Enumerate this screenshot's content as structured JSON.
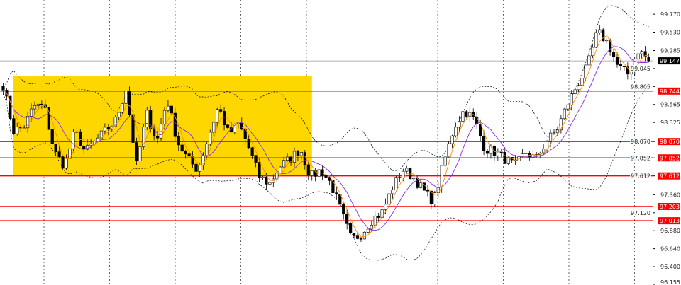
{
  "chart_data": {
    "type": "candlestick",
    "ylim": [
      96.155,
      99.96
    ],
    "y_ticks": [
      "99.770",
      "99.530",
      "99.285",
      "99.045",
      "98.805",
      "98.565",
      "98.325",
      "98.070",
      "97.852",
      "97.612",
      "97.360",
      "97.120",
      "96.880",
      "96.640",
      "96.400",
      "96.155"
    ],
    "closes": [
      98.827,
      98.213,
      98.261,
      98.544,
      98.544,
      97.93,
      97.742,
      98.213,
      97.93,
      98.072,
      98.213,
      98.355,
      98.779,
      97.742,
      98.449,
      98.072,
      98.638,
      98.072,
      97.836,
      97.694,
      98.119,
      98.544,
      98.166,
      98.308,
      97.977,
      97.6,
      97.506,
      97.742,
      97.836,
      97.977,
      97.6,
      97.694,
      97.506,
      97.128,
      96.751,
      96.845,
      97.034,
      97.128,
      97.459,
      97.694,
      97.6,
      97.411,
      97.27,
      97.789,
      98.261,
      98.496,
      98.355,
      97.977,
      97.93,
      97.836,
      97.742,
      97.93,
      97.836,
      98.072,
      98.213,
      98.544,
      98.827,
      99.062,
      99.534,
      99.393,
      99.062,
      98.968,
      99.298,
      99.147
    ],
    "current_price": "99.147",
    "levels": [
      "98.744",
      "98.070",
      "97.852",
      "97.612",
      "97.203",
      "97.013"
    ],
    "zone": {
      "top": 98.94,
      "bottom": 97.612,
      "from_fraction": 0.02,
      "to_fraction": 0.478
    },
    "indicators": [
      "Bollinger Bands",
      "moving average (purple)",
      "moving average (orange)"
    ],
    "grid": "vertical dashed",
    "colors": {
      "level": "#ff0000",
      "zone": "#ffd700",
      "ma_slow": "#8a2be2",
      "ma_fast": "#ff8c00",
      "bands": "#000000",
      "candle": "#000000"
    }
  }
}
